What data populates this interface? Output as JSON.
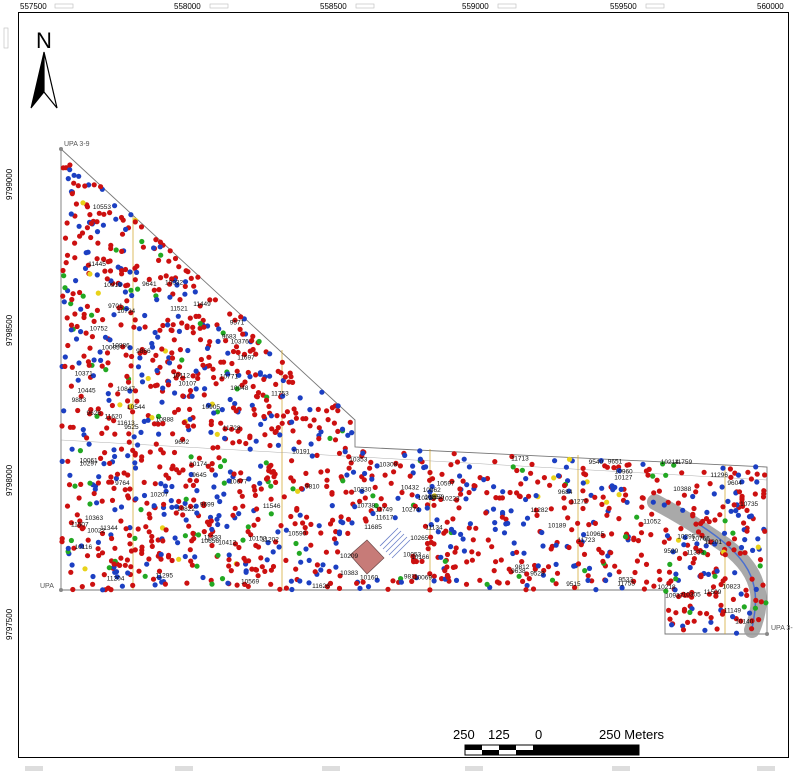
{
  "map": {
    "north_label": "N",
    "x_ticks": [
      "557500",
      "558000",
      "558500",
      "559000",
      "559500",
      "560000"
    ],
    "y_ticks": [
      "9799000",
      "9798500",
      "9798000",
      "9797500"
    ],
    "corner_labels": [
      "UPA 3-9",
      "UPA",
      "UPA 3-"
    ],
    "scale_bar": {
      "labels": [
        "250",
        "125",
        "0",
        "250 Meters"
      ]
    },
    "tree_colors": {
      "red": "#cc1010",
      "blue": "#1c3fc2",
      "green": "#22a822",
      "yellow": "#e8d21a"
    },
    "tree_labels": [
      "11052",
      "11201",
      "11204",
      "11202",
      "11449",
      "11445",
      "11344",
      "11333",
      "11617",
      "11620",
      "11613",
      "11626",
      "11685",
      "11728",
      "11723",
      "11759",
      "11755",
      "11753",
      "11697",
      "11296",
      "11295",
      "11293",
      "11282",
      "11272",
      "11149",
      "11134",
      "11509",
      "11507",
      "11521",
      "11546",
      "11713",
      "11749",
      "10388",
      "10383",
      "10445",
      "10432",
      "10376",
      "10330",
      "10371",
      "10363",
      "10353",
      "10352",
      "10308",
      "10305",
      "10274",
      "10223",
      "10220",
      "10265",
      "10218",
      "10214",
      "10174",
      "10116",
      "10069",
      "10166",
      "10112",
      "10127",
      "10209",
      "10207",
      "10160",
      "10107",
      "10191",
      "10189",
      "10153",
      "10140",
      "10053",
      "10061",
      "10022",
      "10048",
      "10032",
      "10005",
      "9883",
      "9812",
      "9811",
      "9810",
      "9866",
      "9850",
      "9764",
      "9699",
      "9651",
      "9684",
      "9683",
      "9602",
      "9604",
      "9599",
      "9540",
      "9529",
      "9525",
      "9515",
      "9571",
      "9533",
      "9626",
      "9638",
      "9641",
      "9645",
      "9701",
      "10905",
      "10937",
      "10847",
      "10888",
      "10886",
      "10862",
      "10823",
      "10822",
      "10960",
      "10965",
      "10919",
      "10771",
      "10766",
      "10752",
      "10734",
      "10738",
      "10735",
      "10597",
      "10553",
      "10544",
      "10569",
      "10656",
      "10677",
      "10590",
      "10412",
      "10297",
      "10295"
    ]
  }
}
